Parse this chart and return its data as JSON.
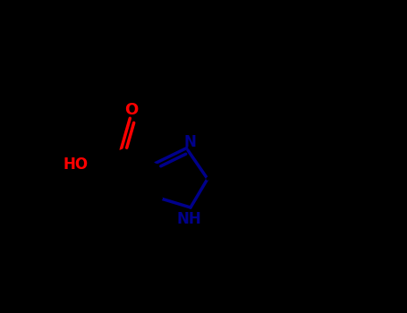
{
  "background_color": "#000000",
  "bond_color": "#000000",
  "nitrogen_color": "#00008B",
  "oxygen_color": "#FF0000",
  "label_N": "N",
  "label_NH": "NH",
  "label_O": "O",
  "label_HO": "HO",
  "figsize": [
    4.55,
    3.5
  ],
  "dpi": 100
}
